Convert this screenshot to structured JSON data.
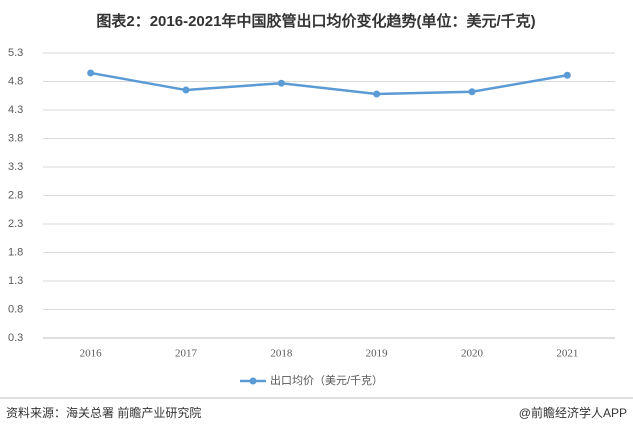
{
  "chart_data": {
    "type": "line",
    "title": "图表2：2016-2021年中国胶管出口均价变化趋势(单位：美元/千克)",
    "categories": [
      "2016",
      "2017",
      "2018",
      "2019",
      "2020",
      "2021"
    ],
    "series": [
      {
        "name": "出口均价（美元/千克）",
        "color": "#5b9bd5",
        "values": [
          4.95,
          4.65,
          4.77,
          4.58,
          4.62,
          4.91
        ]
      }
    ],
    "ylim": [
      0.3,
      5.3
    ],
    "yticks": [
      0.3,
      0.8,
      1.3,
      1.8,
      2.3,
      2.8,
      3.3,
      3.8,
      4.3,
      4.8,
      5.3
    ],
    "grid": true,
    "legend": "bottom"
  },
  "footer": {
    "source": "资料来源：海关总署 前瞻产业研究院",
    "credit": "@前瞻经济学人APP"
  }
}
